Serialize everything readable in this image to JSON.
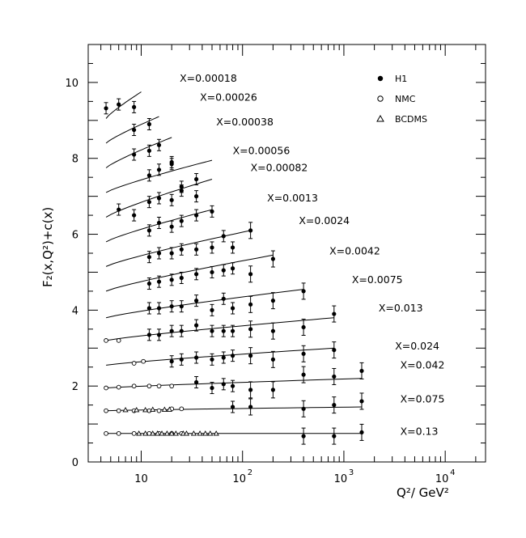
{
  "chart_data": {
    "type": "scatter",
    "xscale": "log",
    "xlim": [
      3,
      25000
    ],
    "ylim": [
      0,
      11
    ],
    "xlabel": "Q²/ GeV²",
    "ylabel": "F₂(x,Q²)+c(x)",
    "grid": false,
    "legend_position": "top-right",
    "legend": [
      {
        "name": "H1",
        "marker": "filled-circle"
      },
      {
        "name": "NMC",
        "marker": "open-circle"
      },
      {
        "name": "BCDMS",
        "marker": "open-triangle"
      }
    ],
    "xticks": [
      {
        "value": 10,
        "label": "10"
      },
      {
        "value": 100,
        "label": "10",
        "exp": "2"
      },
      {
        "value": 1000,
        "label": "10",
        "exp": "3"
      },
      {
        "value": 10000,
        "label": "10",
        "exp": "4"
      }
    ],
    "yticks": [
      0,
      2,
      4,
      6,
      8,
      10
    ],
    "bins": [
      {
        "label": "X=0.00018",
        "label_at": [
          24,
          10.1
        ],
        "fit": [
          [
            4.5,
            9.05
          ],
          [
            10,
            9.75
          ]
        ],
        "h1": [
          [
            4.5,
            9.32
          ],
          [
            6.0,
            9.42
          ],
          [
            8.5,
            9.35
          ]
        ],
        "nmc": [],
        "bcdms": []
      },
      {
        "label": "X=0.00026",
        "label_at": [
          38,
          9.6
        ],
        "fit": [
          [
            4.5,
            8.4
          ],
          [
            15,
            9.1
          ]
        ],
        "h1": [
          [
            8.5,
            8.75
          ],
          [
            12,
            8.9
          ]
        ],
        "nmc": [],
        "bcdms": []
      },
      {
        "label": "X=0.00038",
        "label_at": [
          55,
          8.95
        ],
        "fit": [
          [
            4.5,
            7.75
          ],
          [
            20,
            8.55
          ]
        ],
        "h1": [
          [
            8.5,
            8.1
          ],
          [
            12,
            8.2
          ],
          [
            15,
            8.35
          ],
          [
            20,
            7.9
          ]
        ],
        "nmc": [],
        "bcdms": []
      },
      {
        "label": "X=0.00056",
        "label_at": [
          80,
          8.2
        ],
        "fit": [
          [
            4.5,
            7.1
          ],
          [
            50,
            7.95
          ]
        ],
        "h1": [
          [
            12,
            7.55
          ],
          [
            15,
            7.7
          ],
          [
            20,
            7.85
          ],
          [
            25,
            7.25
          ],
          [
            35,
            7.45
          ]
        ],
        "nmc": [],
        "bcdms": []
      },
      {
        "label": "X=0.00082",
        "label_at": [
          120,
          7.75
        ],
        "fit": [
          [
            4.5,
            6.45
          ],
          [
            50,
            7.45
          ]
        ],
        "h1": [
          [
            6.0,
            6.65
          ],
          [
            8.5,
            6.5
          ],
          [
            12,
            6.85
          ],
          [
            15,
            6.95
          ],
          [
            20,
            6.9
          ],
          [
            25,
            7.15
          ],
          [
            35,
            7.0
          ]
        ],
        "nmc": [],
        "bcdms": []
      },
      {
        "label": "X=0.0013",
        "label_at": [
          175,
          6.95
        ],
        "fit": [
          [
            4.5,
            5.8
          ],
          [
            50,
            6.65
          ]
        ],
        "h1": [
          [
            12,
            6.1
          ],
          [
            15,
            6.3
          ],
          [
            20,
            6.2
          ],
          [
            25,
            6.35
          ],
          [
            35,
            6.5
          ],
          [
            50,
            6.6
          ]
        ],
        "nmc": [],
        "bcdms": []
      },
      {
        "label": "X=0.0024",
        "label_at": [
          360,
          6.35
        ],
        "fit": [
          [
            4.5,
            5.15
          ],
          [
            120,
            6.1
          ]
        ],
        "h1": [
          [
            12,
            5.4
          ],
          [
            15,
            5.5
          ],
          [
            20,
            5.5
          ],
          [
            25,
            5.6
          ],
          [
            35,
            5.6
          ],
          [
            50,
            5.65
          ],
          [
            65,
            5.95
          ],
          [
            80,
            5.65
          ],
          [
            120,
            6.1
          ]
        ],
        "nmc": [],
        "bcdms": []
      },
      {
        "label": "X=0.0042",
        "label_at": [
          720,
          5.55
        ],
        "fit": [
          [
            4.5,
            4.5
          ],
          [
            200,
            5.45
          ]
        ],
        "h1": [
          [
            12,
            4.7
          ],
          [
            15,
            4.75
          ],
          [
            20,
            4.8
          ],
          [
            25,
            4.85
          ],
          [
            35,
            4.95
          ],
          [
            50,
            5.0
          ],
          [
            65,
            5.05
          ],
          [
            80,
            5.1
          ],
          [
            120,
            4.95
          ],
          [
            200,
            5.35
          ]
        ],
        "nmc": [],
        "bcdms": []
      },
      {
        "label": "X=0.0075",
        "label_at": [
          1200,
          4.8
        ],
        "fit": [
          [
            4.5,
            3.8
          ],
          [
            400,
            4.55
          ]
        ],
        "h1": [
          [
            12,
            4.05
          ],
          [
            15,
            4.05
          ],
          [
            20,
            4.1
          ],
          [
            25,
            4.1
          ],
          [
            35,
            4.25
          ],
          [
            50,
            4.0
          ],
          [
            65,
            4.3
          ],
          [
            80,
            4.05
          ],
          [
            120,
            4.15
          ],
          [
            200,
            4.25
          ],
          [
            400,
            4.5
          ]
        ],
        "nmc": [],
        "bcdms": []
      },
      {
        "label": "X=0.013",
        "label_at": [
          2200,
          4.05
        ],
        "fit": [
          [
            4.5,
            3.2
          ],
          [
            800,
            3.8
          ]
        ],
        "h1": [
          [
            12,
            3.35
          ],
          [
            15,
            3.35
          ],
          [
            20,
            3.45
          ],
          [
            25,
            3.45
          ],
          [
            35,
            3.6
          ],
          [
            50,
            3.45
          ],
          [
            65,
            3.45
          ],
          [
            80,
            3.45
          ],
          [
            120,
            3.5
          ],
          [
            200,
            3.45
          ],
          [
            400,
            3.55
          ],
          [
            800,
            3.9
          ]
        ],
        "nmc": [
          [
            4.5,
            3.2
          ],
          [
            6.0,
            3.2
          ]
        ],
        "bcdms": []
      },
      {
        "label": "X=0.024",
        "label_at": [
          3200,
          3.05
        ],
        "fit": [
          [
            4.5,
            2.55
          ],
          [
            800,
            3.0
          ]
        ],
        "h1": [
          [
            20,
            2.65
          ],
          [
            25,
            2.7
          ],
          [
            35,
            2.75
          ],
          [
            50,
            2.7
          ],
          [
            65,
            2.75
          ],
          [
            80,
            2.8
          ],
          [
            120,
            2.8
          ],
          [
            200,
            2.7
          ],
          [
            400,
            2.85
          ],
          [
            800,
            2.95
          ]
        ],
        "nmc": [
          [
            8.5,
            2.6
          ],
          [
            10.5,
            2.65
          ]
        ],
        "bcdms": []
      },
      {
        "label": "X=0.042",
        "label_at": [
          3600,
          2.55
        ],
        "fit": [
          [
            4.5,
            1.95
          ],
          [
            1500,
            2.2
          ]
        ],
        "h1": [
          [
            35,
            2.1
          ],
          [
            50,
            1.95
          ],
          [
            65,
            2.05
          ],
          [
            80,
            2.0
          ],
          [
            120,
            1.9
          ],
          [
            200,
            1.9
          ],
          [
            400,
            2.3
          ],
          [
            800,
            2.25
          ],
          [
            1500,
            2.4
          ]
        ],
        "nmc": [
          [
            4.5,
            1.95
          ],
          [
            6.0,
            1.97
          ],
          [
            8.5,
            2.0
          ],
          [
            12,
            2.0
          ],
          [
            15,
            2.0
          ],
          [
            20,
            2.0
          ]
        ],
        "bcdms": []
      },
      {
        "label": "X=0.075",
        "label_at": [
          3600,
          1.65
        ],
        "fit": [
          [
            4.5,
            1.35
          ],
          [
            1500,
            1.45
          ]
        ],
        "h1": [
          [
            80,
            1.45
          ],
          [
            120,
            1.45
          ],
          [
            400,
            1.4
          ],
          [
            800,
            1.5
          ],
          [
            1500,
            1.6
          ]
        ],
        "nmc": [
          [
            4.5,
            1.35
          ],
          [
            6.0,
            1.35
          ],
          [
            8.5,
            1.35
          ],
          [
            12,
            1.35
          ],
          [
            15,
            1.35
          ],
          [
            20,
            1.4
          ],
          [
            25,
            1.4
          ]
        ],
        "bcdms": [
          [
            7.0,
            1.37
          ],
          [
            9.0,
            1.37
          ],
          [
            11,
            1.37
          ],
          [
            13,
            1.38
          ],
          [
            17,
            1.38
          ],
          [
            19,
            1.38
          ]
        ]
      },
      {
        "label": "X=0.13",
        "label_at": [
          3600,
          0.8
        ],
        "fit": [
          [
            4.5,
            0.75
          ],
          [
            1500,
            0.75
          ]
        ],
        "h1": [
          [
            400,
            0.68
          ],
          [
            800,
            0.68
          ],
          [
            1500,
            0.78
          ]
        ],
        "nmc": [
          [
            4.5,
            0.75
          ],
          [
            6.0,
            0.75
          ],
          [
            8.5,
            0.75
          ],
          [
            12,
            0.75
          ],
          [
            15,
            0.75
          ],
          [
            20,
            0.75
          ],
          [
            25,
            0.75
          ]
        ],
        "bcdms": [
          [
            9.5,
            0.75
          ],
          [
            11,
            0.75
          ],
          [
            13,
            0.75
          ],
          [
            14.5,
            0.75
          ],
          [
            16,
            0.75
          ],
          [
            18,
            0.75
          ],
          [
            20,
            0.75
          ],
          [
            22,
            0.75
          ],
          [
            26,
            0.75
          ],
          [
            28,
            0.75
          ],
          [
            33,
            0.75
          ],
          [
            38,
            0.75
          ],
          [
            43,
            0.75
          ],
          [
            48,
            0.75
          ],
          [
            55,
            0.75
          ]
        ]
      }
    ]
  }
}
